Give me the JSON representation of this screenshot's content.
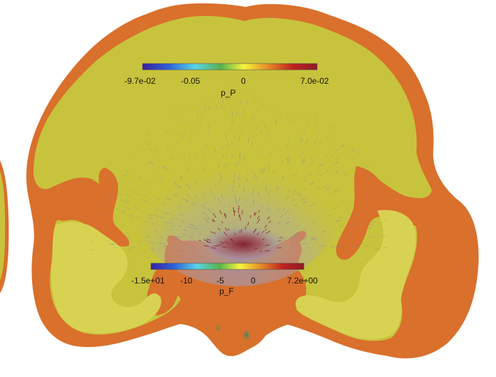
{
  "colorbars": [
    {
      "id": "p_P",
      "title": "p_P",
      "range_labels": [
        "-9.7e-02",
        "-0.05",
        "0",
        "7.0e-02"
      ],
      "colormap": [
        "#3a1fa0",
        "#2c61d8",
        "#59d3e6",
        "#58b24a",
        "#f7f53b",
        "#e58a25",
        "#c0211e",
        "#8d1b28"
      ]
    },
    {
      "id": "p_F",
      "title": "p_F",
      "range_labels": [
        "-1.5e+01",
        "-10",
        "-5",
        "0",
        "7.2e+00"
      ],
      "colormap": [
        "#3a1fa0",
        "#2c61d8",
        "#59d3e6",
        "#58b24a",
        "#f7f53b",
        "#e58a25",
        "#c0211e",
        "#8d1b28"
      ]
    }
  ],
  "colors": {
    "background": "#ffffff",
    "csf_orange": "#d9702c",
    "tissue_yellow": "#c8c33c",
    "tissue_light": "#d8d252",
    "hot_core": "#8a2230",
    "vector_gray": "#8a90b0"
  }
}
